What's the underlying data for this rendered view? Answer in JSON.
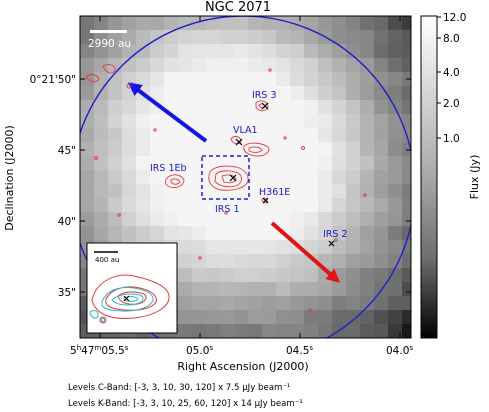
{
  "chart_data": {
    "type": "heatmap",
    "title": "NGC 2071",
    "xlabel": "Right Ascension (J2000)",
    "ylabel": "Declination (J2000)",
    "x_ticks": [
      {
        "pre": "5",
        "s1": "h",
        "mid": "47",
        "s2": "m",
        "sec": "05.5",
        "s3": "s"
      },
      {
        "pre": "",
        "s1": "",
        "mid": "",
        "s2": "",
        "sec": "05.0",
        "s3": "s"
      },
      {
        "pre": "",
        "s1": "",
        "mid": "",
        "s2": "",
        "sec": "04.5",
        "s3": "s"
      },
      {
        "pre": "",
        "s1": "",
        "mid": "",
        "s2": "",
        "sec": "04.0",
        "s3": "s"
      }
    ],
    "y_ticks": [
      "0°21'50\"",
      "45\"",
      "40\"",
      "35\""
    ],
    "colorbar": {
      "label": "Flux (Jy)",
      "ticks": [
        "12.0",
        "8.0",
        "4.0",
        "2.0",
        "1.0"
      ],
      "scale": "sqrt",
      "range": [
        0,
        12
      ]
    },
    "scalebar_label": "2990 au",
    "inset_scalebar_label": "400 au",
    "sources": [
      {
        "name": "IRS 3",
        "flux_note": "peak"
      },
      {
        "name": "VLA1"
      },
      {
        "name": "IRS 1Eb"
      },
      {
        "name": "IRS 1"
      },
      {
        "name": "H361E"
      },
      {
        "name": "IRS 2"
      }
    ],
    "contour_levels": {
      "c_band": "Levels C-Band: [-3, 3, 10, 30, 120] x 7.5 μJy beam⁻¹",
      "k_band": "Levels K-Band: [-3, 3, 10, 25, 60, 120] x 14 μJy beam⁻¹"
    },
    "colors": {
      "contour": "#e0393e",
      "inset_contour_k": "#2ab7c4",
      "circle": "#1f1fcc",
      "arrow_blue": "#1515e6",
      "arrow_red": "#e01515",
      "label_blue": "#1a1acc",
      "marker": "#000000"
    },
    "grid": false
  }
}
